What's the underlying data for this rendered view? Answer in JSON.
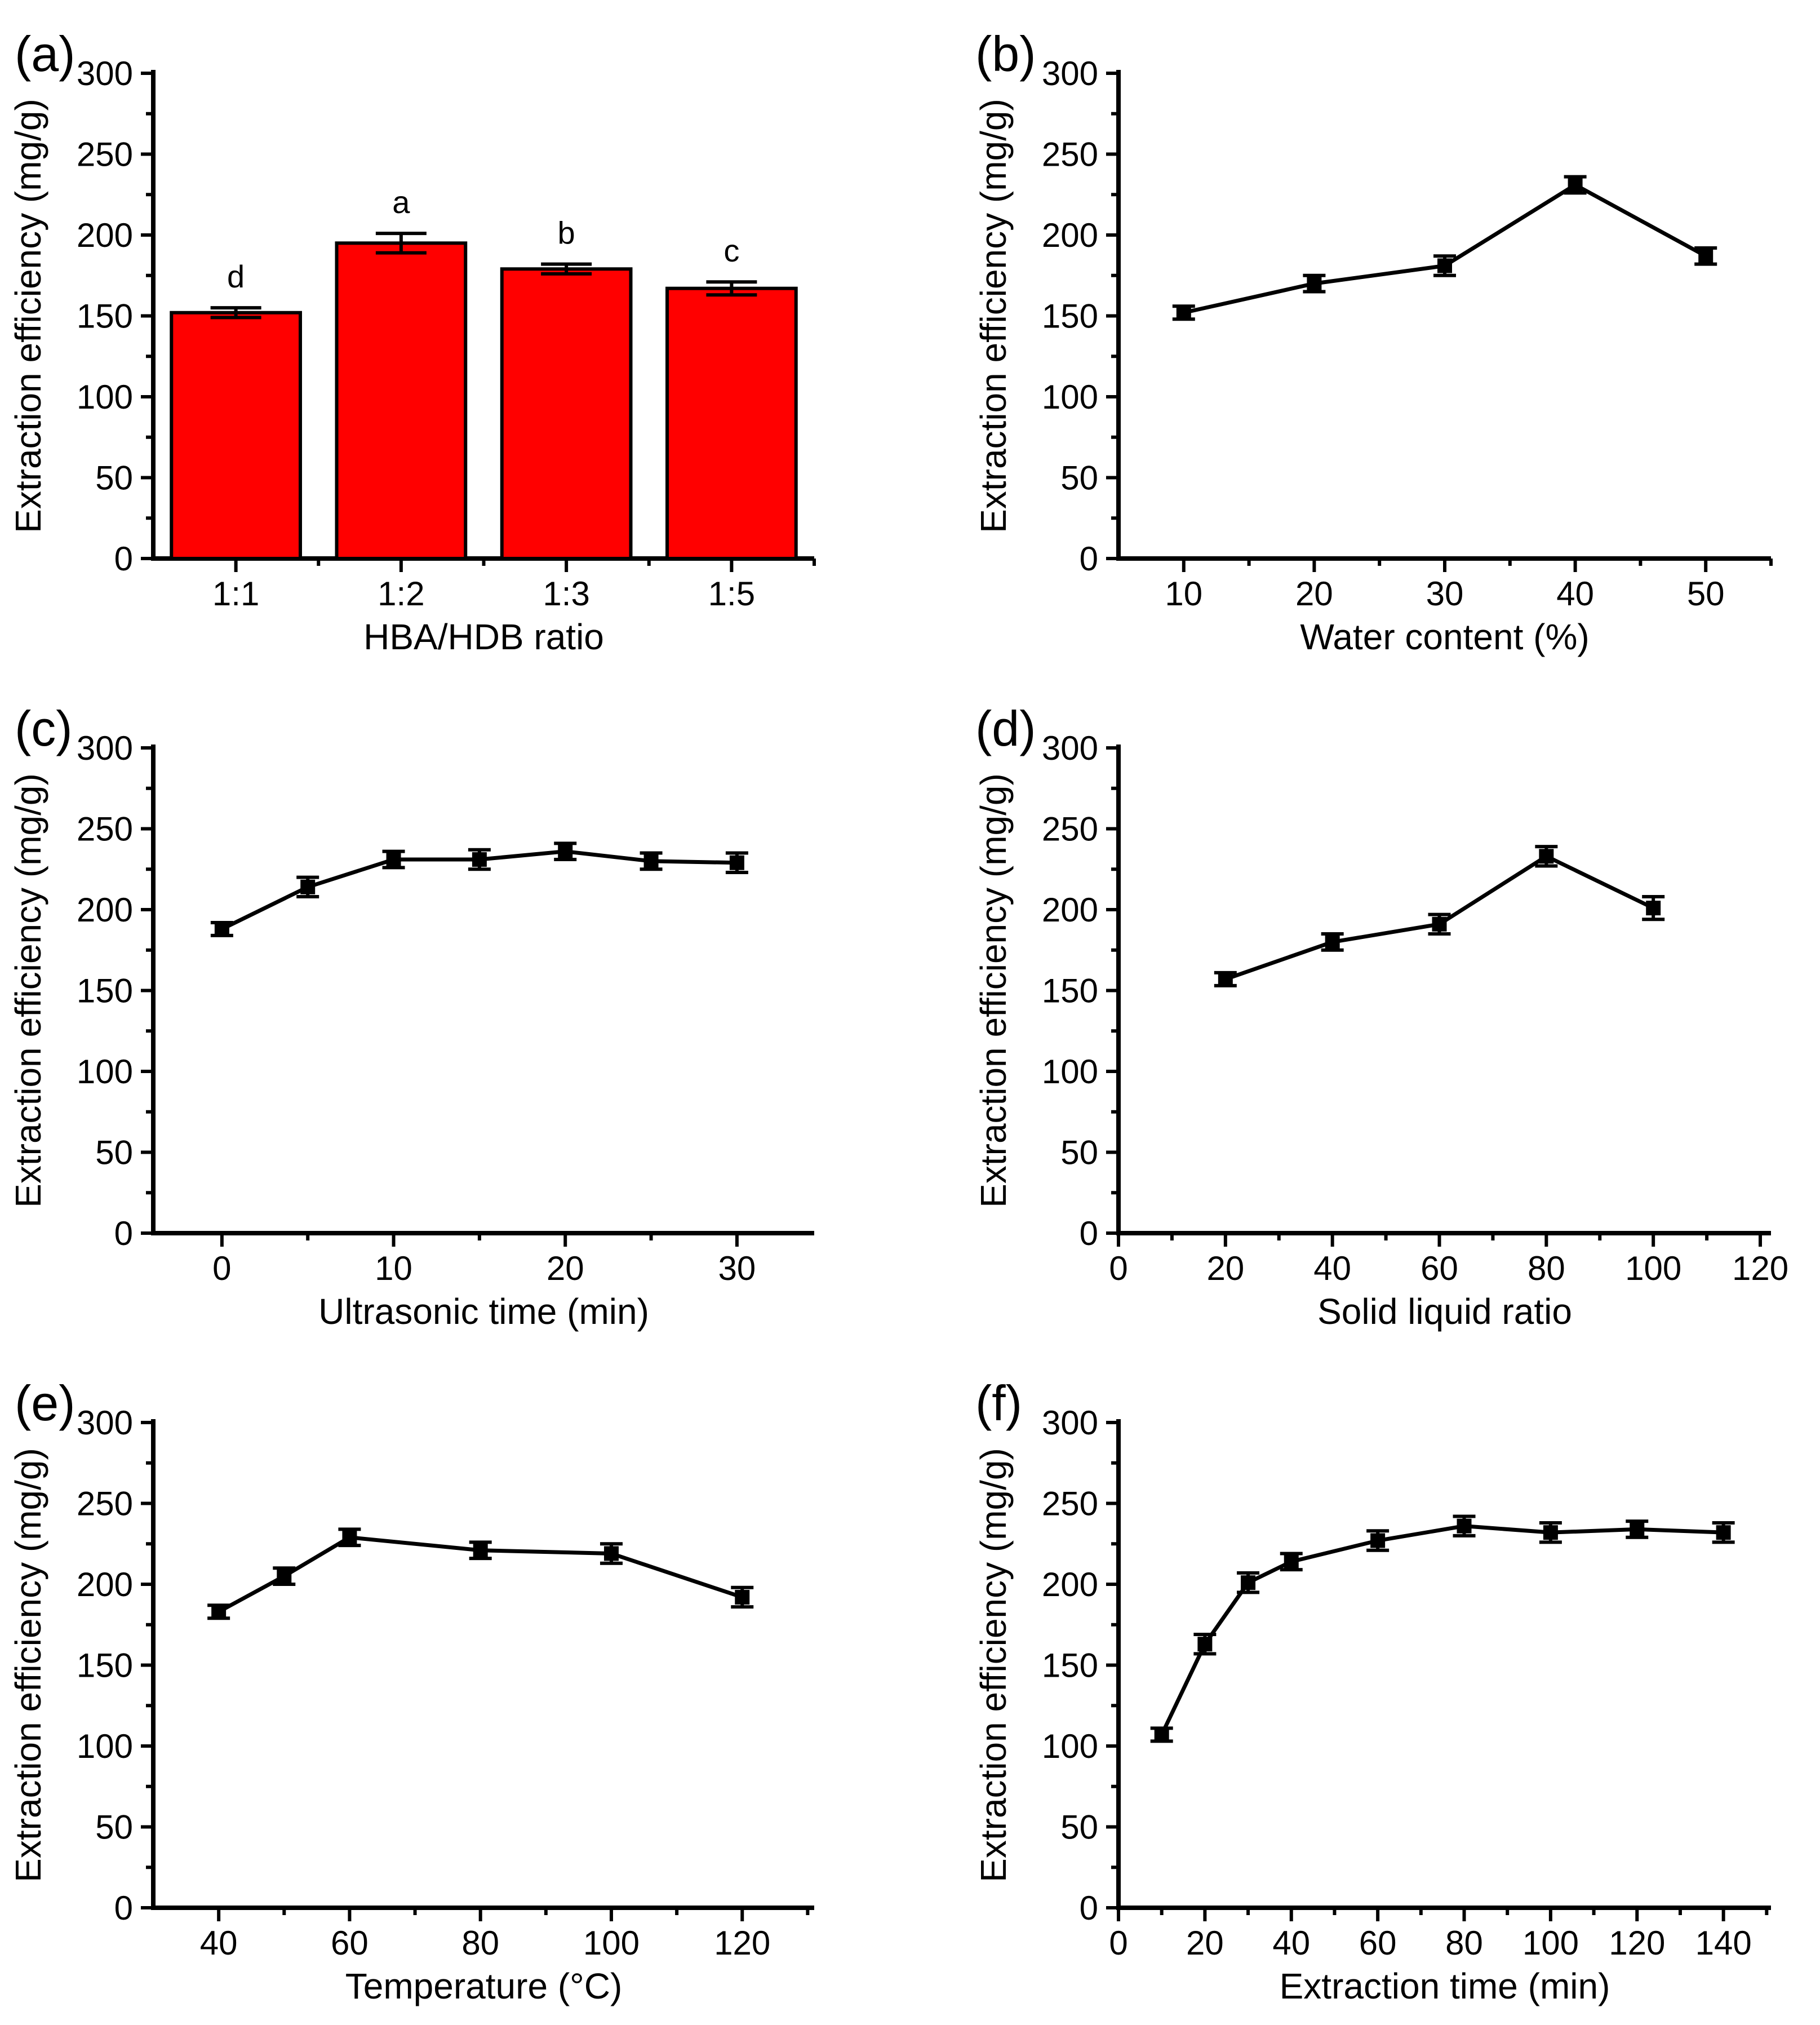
{
  "figure": {
    "background": "#FFFFFF",
    "text_color": "#000000",
    "accent_color": "#FF0000"
  },
  "chart_data": [
    {
      "panel_label": "(a)",
      "type": "bar",
      "side": "left",
      "xlabel": "HBA/HDB ratio",
      "ylabel": "Extraction efficiency (mg/g)",
      "categories": [
        "1:1",
        "1:2",
        "1:3",
        "1:5"
      ],
      "values": [
        152,
        195,
        179,
        167
      ],
      "errors": [
        3,
        6,
        3,
        4
      ],
      "sig_labels": [
        "d",
        "a",
        "b",
        "c"
      ],
      "bar_color": "#FF0000",
      "bar_edge_color": "#000000",
      "ylim": [
        0,
        300
      ],
      "yticks_major": [
        0,
        50,
        100,
        150,
        200,
        250,
        300
      ],
      "yticks_minor": [
        25,
        75,
        125,
        175,
        225,
        275
      ],
      "grid": false,
      "legend": "none"
    },
    {
      "panel_label": "(b)",
      "type": "line",
      "side": "right",
      "xlabel": "Water content (%)",
      "ylabel": "Extraction efficiency (mg/g)",
      "x": [
        10,
        20,
        30,
        40,
        50
      ],
      "values": [
        152,
        170,
        181,
        231,
        187
      ],
      "errors": [
        4,
        5,
        6,
        5,
        5
      ],
      "line_color": "#000000",
      "marker": "square",
      "xlim": [
        5,
        55
      ],
      "xticks_major": [
        10,
        20,
        30,
        40,
        50
      ],
      "xticks_minor": [
        15,
        25,
        35,
        45,
        55
      ],
      "ylim": [
        0,
        300
      ],
      "yticks_major": [
        0,
        50,
        100,
        150,
        200,
        250,
        300
      ],
      "yticks_minor": [
        25,
        75,
        125,
        175,
        225,
        275
      ],
      "grid": false,
      "legend": "none"
    },
    {
      "panel_label": "(c)",
      "type": "line",
      "side": "left",
      "xlabel": "Ultrasonic time (min)",
      "ylabel": "Extraction efficiency (mg/g)",
      "x": [
        0,
        5,
        10,
        15,
        20,
        25,
        30
      ],
      "values": [
        188,
        214,
        231,
        231,
        236,
        230,
        229
      ],
      "errors": [
        4,
        6,
        5,
        6,
        5,
        5,
        6
      ],
      "line_color": "#000000",
      "marker": "square",
      "xlim": [
        -4,
        34.5
      ],
      "xticks_major": [
        0,
        10,
        20,
        30
      ],
      "xticks_minor": [
        5,
        15,
        25
      ],
      "ylim": [
        0,
        300
      ],
      "yticks_major": [
        0,
        50,
        100,
        150,
        200,
        250,
        300
      ],
      "yticks_minor": [
        25,
        75,
        125,
        175,
        225,
        275
      ],
      "grid": false,
      "legend": "none"
    },
    {
      "panel_label": "(d)",
      "type": "line",
      "side": "right",
      "xlabel": "Solid liquid ratio",
      "ylabel": "Extraction efficiency (mg/g)",
      "x": [
        20,
        40,
        60,
        80,
        100
      ],
      "values": [
        157,
        180,
        191,
        233,
        201
      ],
      "errors": [
        4,
        5,
        6,
        6,
        7
      ],
      "line_color": "#000000",
      "marker": "square",
      "xlim": [
        0,
        122
      ],
      "xticks_major": [
        0,
        20,
        40,
        60,
        80,
        100,
        120
      ],
      "xticks_minor": [
        10,
        30,
        50,
        70,
        90,
        110
      ],
      "ylim": [
        0,
        300
      ],
      "yticks_major": [
        0,
        50,
        100,
        150,
        200,
        250,
        300
      ],
      "yticks_minor": [
        25,
        75,
        125,
        175,
        225,
        275
      ],
      "grid": false,
      "legend": "none"
    },
    {
      "panel_label": "(e)",
      "type": "line",
      "side": "left",
      "xlabel": "Temperature (°C)",
      "ylabel": "Extraction efficiency (mg/g)",
      "x": [
        40,
        50,
        60,
        80,
        100,
        120
      ],
      "values": [
        183,
        205,
        229,
        221,
        219,
        192
      ],
      "errors": [
        4,
        5,
        5,
        5,
        6,
        6
      ],
      "line_color": "#000000",
      "marker": "square",
      "xlim": [
        30,
        131
      ],
      "xticks_major": [
        40,
        60,
        80,
        100,
        120
      ],
      "xticks_minor": [
        50,
        70,
        90,
        110,
        130
      ],
      "ylim": [
        0,
        300
      ],
      "yticks_major": [
        0,
        50,
        100,
        150,
        200,
        250,
        300
      ],
      "yticks_minor": [
        25,
        75,
        125,
        175,
        225,
        275
      ],
      "grid": false,
      "legend": "none"
    },
    {
      "panel_label": "(f)",
      "type": "line",
      "side": "right",
      "xlabel": "Extraction time (min)",
      "ylabel": "Extraction efficiency (mg/g)",
      "x": [
        10,
        20,
        30,
        40,
        60,
        80,
        100,
        120,
        140
      ],
      "values": [
        107,
        163,
        201,
        214,
        227,
        236,
        232,
        234,
        232
      ],
      "errors": [
        4,
        6,
        6,
        5,
        6,
        6,
        6,
        5,
        6
      ],
      "line_color": "#000000",
      "marker": "square",
      "xlim": [
        0,
        151
      ],
      "xticks_major": [
        0,
        20,
        40,
        60,
        80,
        100,
        120,
        140
      ],
      "xticks_minor": [
        10,
        30,
        50,
        70,
        90,
        110,
        130,
        150
      ],
      "ylim": [
        0,
        300
      ],
      "yticks_major": [
        0,
        50,
        100,
        150,
        200,
        250,
        300
      ],
      "yticks_minor": [
        25,
        75,
        125,
        175,
        225,
        275
      ],
      "grid": false,
      "legend": "none"
    }
  ]
}
